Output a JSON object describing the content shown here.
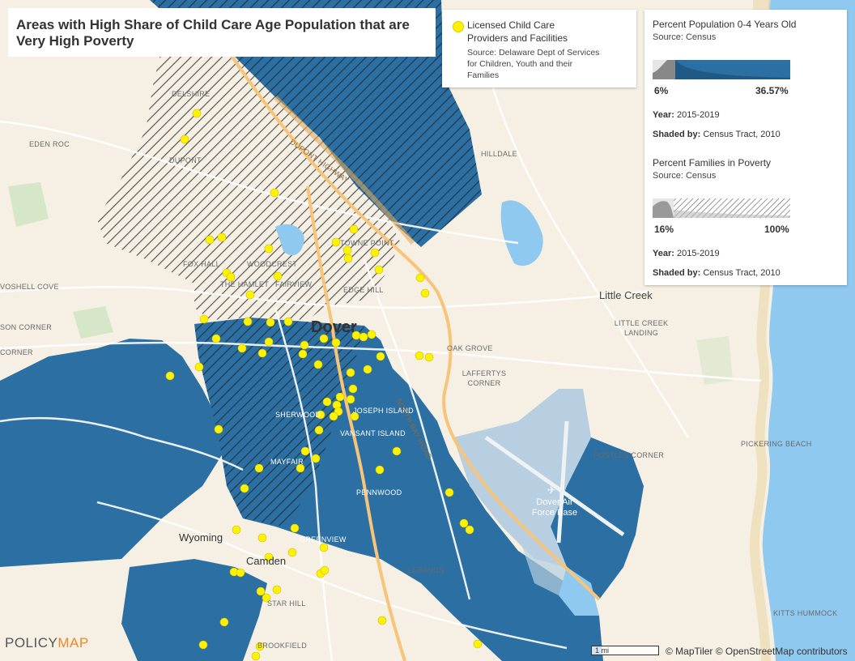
{
  "title": "Areas with High Share of Child Care Age Population that are Very High Poverty",
  "points_legend": {
    "label": "Licensed Child Care Providers and Facilities",
    "source": "Source: Delaware Dept of Services for Children, Youth and their Families",
    "color": "#fff200"
  },
  "layer1": {
    "title": "Percent Population 0-4 Years Old",
    "source": "Source: Census",
    "min": "6%",
    "max": "36.57%",
    "year_label": "Year:",
    "year": "2015-2019",
    "shaded_label": "Shaded by:",
    "shaded": "Census Tract, 2010",
    "color": "#2b6fa3"
  },
  "layer2": {
    "title": "Percent Families in Poverty",
    "source": "Source: Census",
    "min": "16%",
    "max": "100%",
    "year_label": "Year:",
    "year": "2015-2019",
    "shaded_label": "Shaded by:",
    "shaded": "Census Tract, 2010"
  },
  "map_labels": {
    "delshire": "DELSHIRE",
    "eden_roc": "EDEN ROC",
    "dupont": "DUPONT",
    "fox_hall": "FOX HALL",
    "woodcrest": "WOODCREST",
    "the_hamlet": "THE HAMLET",
    "fairview": "FAIRVIEW",
    "voshell_cove": "VOSHELL COVE",
    "son_corner": "SON CORNER",
    "corner": "CORNER",
    "towne_point": "TOWNE POINT",
    "edge_hill": "EDGE HILL",
    "dover": "Dover",
    "hilldale": "HILLDALE",
    "little_creek": "Little Creek",
    "little_creek_landing": "LITTLE CREEK LANDING",
    "oak_grove": "OAK GROVE",
    "laffertys_corner": "LAFFERTYS CORNER",
    "joseph_island": "JOSEPH ISLAND",
    "vansant_island": "VANSANT ISLAND",
    "sherwood": "SHERWOOD",
    "mayfair": "MAYFAIR",
    "pennwood": "PENNWOOD",
    "postles_corner": "POSTLES CORNER",
    "pickering_beach": "PICKERING BEACH",
    "dover_afb": "Dover Air Force Base",
    "wyoming": "Wyoming",
    "greenview": "GREENVIEW",
    "camden": "Camden",
    "lebanon": "LEBANON",
    "star_hill": "STAR HILL",
    "brookfield": "BROOKFIELD",
    "kitts_hummock": "KITTS HUMMOCK",
    "south_bay_road": "South Bay Road",
    "dupont_highway": "Dupont Highway"
  },
  "logo": {
    "part1": "POLICY",
    "part2": "MAP"
  },
  "scale": "1 mi",
  "credit": "© MapTiler © OpenStreetMap contributors"
}
